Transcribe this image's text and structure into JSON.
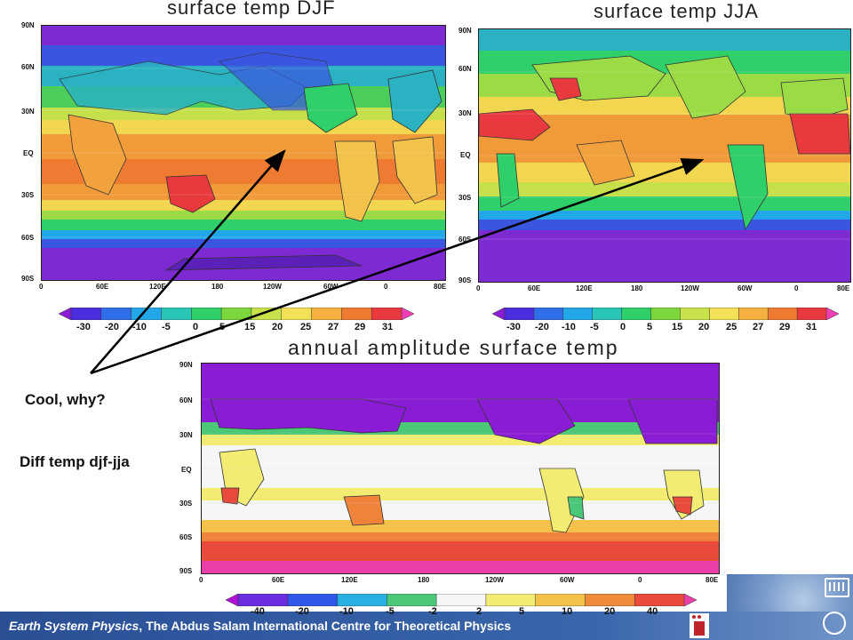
{
  "panels": {
    "djf": {
      "title": "surface temp DJF",
      "lat_labels": [
        "90N",
        "60N",
        "30N",
        "EQ",
        "30S",
        "60S",
        "90S"
      ],
      "lon_labels": [
        "0",
        "60E",
        "120E",
        "180",
        "120W",
        "60W",
        "0",
        "80E"
      ],
      "colorbar_ticks": [
        "-30",
        "-20",
        "-10",
        "-5",
        "0",
        "5",
        "15",
        "20",
        "25",
        "27",
        "29",
        "31"
      ],
      "colorbar_colors": [
        "#8a1cd6",
        "#4b2de0",
        "#2f6ee8",
        "#22a8e8",
        "#29c6b8",
        "#2fcf6a",
        "#7ad63b",
        "#c8e24b",
        "#f2e157",
        "#f4b13d",
        "#ee7a32",
        "#e83a3e",
        "#f03eb6"
      ]
    },
    "jja": {
      "title": "surface temp JJA",
      "lat_labels": [
        "90N",
        "60N",
        "30N",
        "EQ",
        "30S",
        "60S",
        "90S"
      ],
      "lon_labels": [
        "0",
        "60E",
        "120E",
        "180",
        "120W",
        "60W",
        "0",
        "80E"
      ],
      "colorbar_ticks": [
        "-30",
        "-20",
        "-10",
        "-5",
        "0",
        "5",
        "15",
        "20",
        "25",
        "27",
        "29",
        "31"
      ],
      "colorbar_colors": [
        "#8a1cd6",
        "#4b2de0",
        "#2f6ee8",
        "#22a8e8",
        "#29c6b8",
        "#2fcf6a",
        "#7ad63b",
        "#c8e24b",
        "#f2e157",
        "#f4b13d",
        "#ee7a32",
        "#e83a3e",
        "#f03eb6"
      ]
    },
    "amp": {
      "title": "annual amplitude surface temp",
      "lat_labels": [
        "90N",
        "60N",
        "30N",
        "EQ",
        "30S",
        "60S",
        "90S"
      ],
      "lon_labels": [
        "0",
        "60E",
        "120E",
        "180",
        "120W",
        "60W",
        "0",
        "80E"
      ],
      "colorbar_ticks": [
        "-40",
        "-20",
        "-10",
        "-5",
        "-2",
        "2",
        "5",
        "10",
        "20",
        "40"
      ],
      "colorbar_colors": [
        "#b012d8",
        "#6a2ee0",
        "#2f58e8",
        "#28b0e2",
        "#4ac878",
        "#f6f6f6",
        "#f3ec72",
        "#f4c24a",
        "#ef8a3a",
        "#e84a3c",
        "#ea3fa8"
      ]
    }
  },
  "annotations": {
    "cool_why": "Cool, why?",
    "diff": "Diff temp djf-jja"
  },
  "footer": {
    "italic": "Earth System Physics",
    "rest": ", The Abdus Salam International Centre for Theoretical Physics"
  },
  "colors": {
    "footer_bg": "#2f5aa0",
    "arrow": "#000000"
  }
}
